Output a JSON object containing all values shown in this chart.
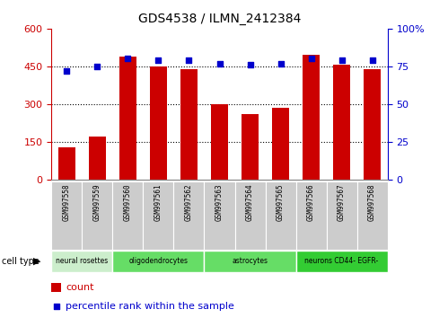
{
  "title": "GDS4538 / ILMN_2412384",
  "samples": [
    "GSM997558",
    "GSM997559",
    "GSM997560",
    "GSM997561",
    "GSM997562",
    "GSM997563",
    "GSM997564",
    "GSM997565",
    "GSM997566",
    "GSM997567",
    "GSM997568"
  ],
  "counts": [
    130,
    170,
    490,
    450,
    440,
    300,
    262,
    285,
    495,
    455,
    440
  ],
  "percentile_ranks": [
    72,
    75,
    80,
    79,
    79,
    77,
    76,
    77,
    80,
    79,
    79
  ],
  "ylim_left": [
    0,
    600
  ],
  "ylim_right": [
    0,
    100
  ],
  "yticks_left": [
    0,
    150,
    300,
    450,
    600
  ],
  "yticks_right": [
    0,
    25,
    50,
    75,
    100
  ],
  "bar_color": "#cc0000",
  "dot_color": "#0000cc",
  "cell_type_defs": [
    {
      "label": "neural rosettes",
      "start": 0,
      "end": 2,
      "color": "#cceecc"
    },
    {
      "label": "oligodendrocytes",
      "start": 2,
      "end": 5,
      "color": "#66dd66"
    },
    {
      "label": "astrocytes",
      "start": 5,
      "end": 8,
      "color": "#66dd66"
    },
    {
      "label": "neurons CD44- EGFR-",
      "start": 8,
      "end": 11,
      "color": "#33cc33"
    }
  ],
  "background_color": "#ffffff",
  "sample_box_color": "#cccccc",
  "grid_dotted_color": "#000000",
  "legend_count_color": "#cc0000",
  "legend_pct_color": "#0000cc"
}
